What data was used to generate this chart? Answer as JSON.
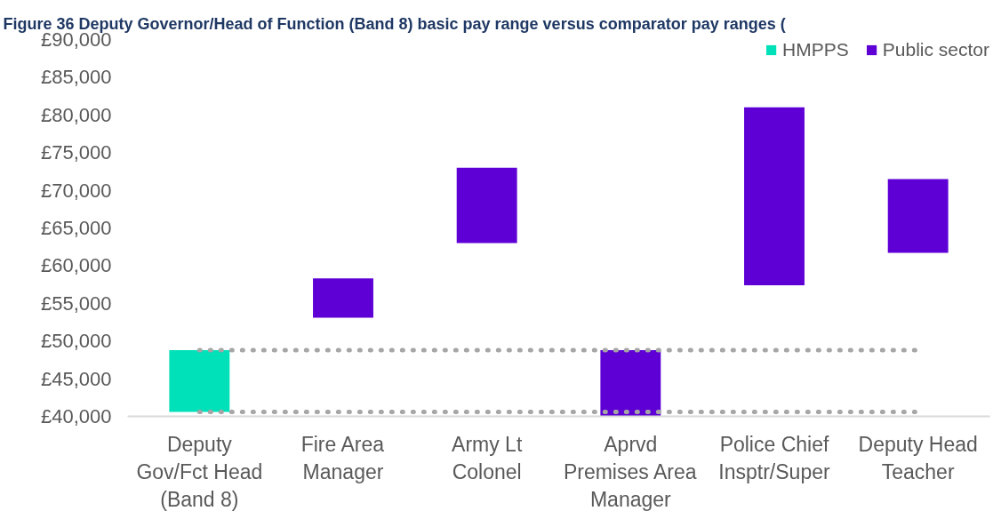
{
  "chart_data": {
    "type": "bar",
    "title": "Figure 36 Deputy Governor/Head of Function (Band 8) basic pay range versus comparator pay ranges (",
    "categories": [
      "Deputy Gov/Fct Head (Band 8)",
      "Fire Area Manager",
      "Army Lt Colonel",
      "Aprvd Premises Area Manager",
      "Police Chief Insptr/Super",
      "Deputy Head Teacher"
    ],
    "series": [
      {
        "name": "HMPPS",
        "color": "#00e0b9",
        "base": [
          40600,
          null,
          null,
          null,
          null,
          null
        ],
        "values": [
          8200,
          null,
          null,
          null,
          null,
          null
        ]
      },
      {
        "name": "Public sector",
        "color": "#5e00d5",
        "base": [
          null,
          53100,
          63000,
          40000,
          57400,
          61700
        ],
        "values": [
          null,
          5200,
          10000,
          8800,
          23600,
          9800
        ]
      }
    ],
    "ylim": [
      40000,
      90000
    ],
    "yticks": [
      {
        "value": 40000,
        "label": "£40,000"
      },
      {
        "value": 45000,
        "label": "£45,000"
      },
      {
        "value": 50000,
        "label": "£50,000"
      },
      {
        "value": 55000,
        "label": "£55,000"
      },
      {
        "value": 60000,
        "label": "£60,000"
      },
      {
        "value": 65000,
        "label": "£65,000"
      },
      {
        "value": 70000,
        "label": "£70,000"
      },
      {
        "value": 75000,
        "label": "£75,000"
      },
      {
        "value": 80000,
        "label": "£80,000"
      },
      {
        "value": 85000,
        "label": "£85,000"
      },
      {
        "value": 90000,
        "label": "£90,000"
      }
    ],
    "ref_lines": [
      {
        "axis": "y",
        "value": 48800,
        "color": "#a6a6a6",
        "line_style": "dotted"
      },
      {
        "axis": "y",
        "value": 40600,
        "color": "#a6a6a6",
        "line_style": "dotted"
      }
    ],
    "grid": false,
    "legend": "top right"
  }
}
